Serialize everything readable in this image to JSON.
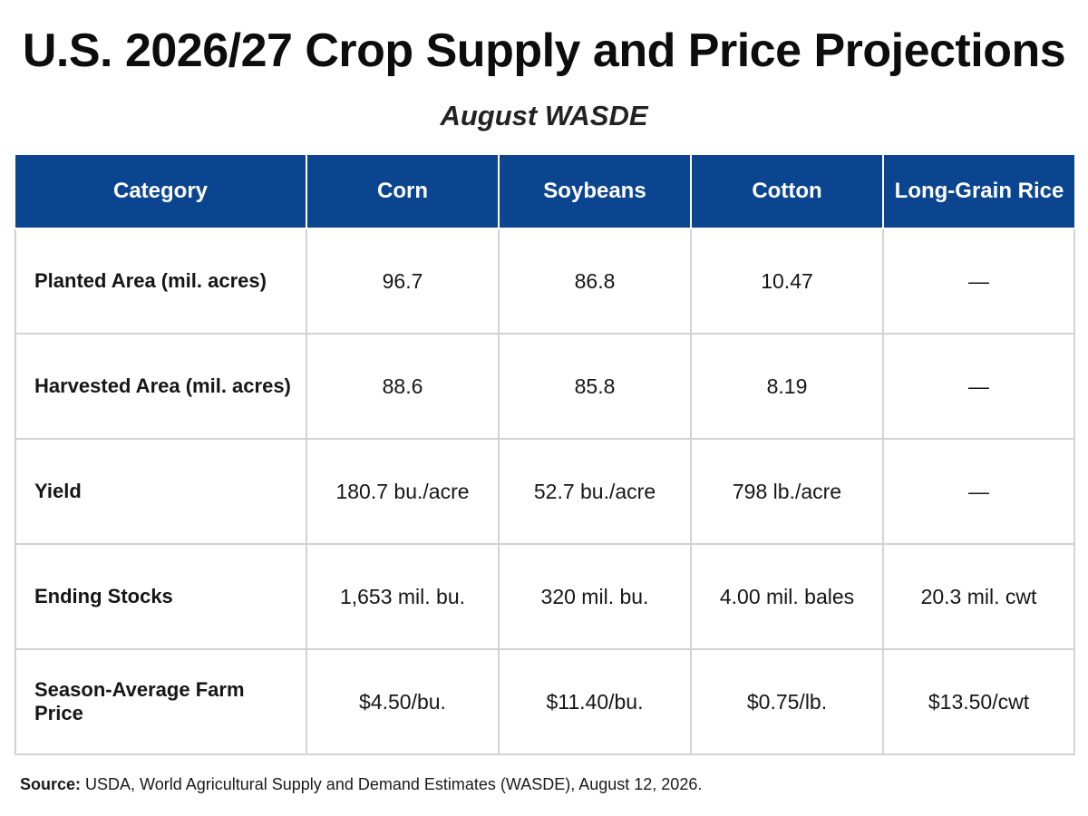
{
  "title": "U.S. 2026/27 Crop Supply and Price Projections",
  "subtitle": "August WASDE",
  "colors": {
    "header_bg": "#0b4590",
    "header_text": "#ffffff",
    "grid": "#d3d3d3"
  },
  "table": {
    "headers": [
      "Category",
      "Corn",
      "Soybeans",
      "Cotton",
      "Long-Grain Rice"
    ],
    "rows": [
      [
        "Planted Area (mil. acres)",
        "96.7",
        "86.8",
        "10.47",
        "—"
      ],
      [
        "Harvested Area (mil. acres)",
        "88.6",
        "85.8",
        "8.19",
        "—"
      ],
      [
        "Yield",
        "180.7 bu./acre",
        "52.7 bu./acre",
        "798 lb./acre",
        "—"
      ],
      [
        "Ending Stocks",
        "1,653 mil. bu.",
        "320 mil. bu.",
        "4.00 mil. bales",
        "20.3 mil. cwt"
      ],
      [
        "Season-Average Farm Price",
        "$4.50/bu.",
        "$11.40/bu.",
        "$0.75/lb.",
        "$13.50/cwt"
      ]
    ]
  },
  "source": {
    "label": "Source:",
    "text": " USDA, World Agricultural Supply and Demand Estimates (WASDE), August 12, 2026."
  }
}
